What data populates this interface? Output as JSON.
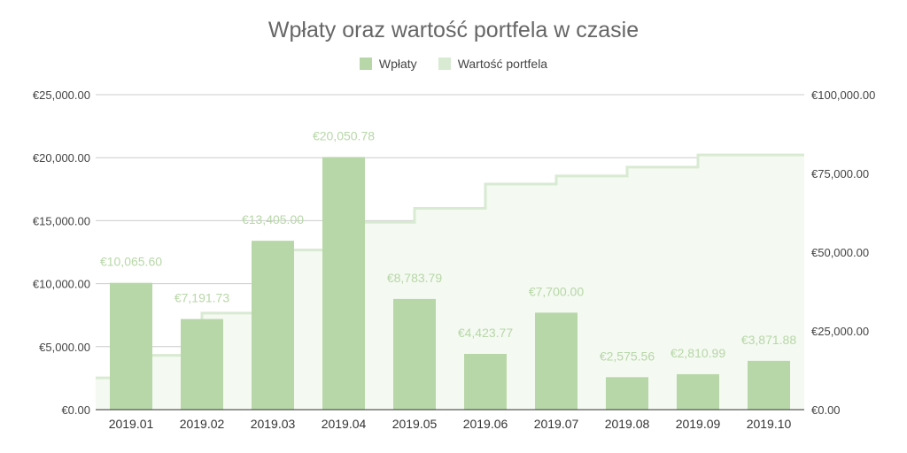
{
  "chart_data": {
    "type": "bar",
    "title": "Wpłaty oraz wartość portfela w czasie",
    "categories": [
      "2019.01",
      "2019.02",
      "2019.03",
      "2019.04",
      "2019.05",
      "2019.06",
      "2019.07",
      "2019.08",
      "2019.09",
      "2019.10"
    ],
    "series": [
      {
        "name": "Wpłaty",
        "type": "bar",
        "axis": "left",
        "color": "#b7d7a8",
        "values": [
          10065.6,
          7191.73,
          13405.0,
          20050.78,
          8783.79,
          4423.77,
          7700.0,
          2575.56,
          2810.99,
          3871.88
        ],
        "labels": [
          "€10,065.60",
          "€7,191.73",
          "€13,405.00",
          "€20,050.78",
          "€8,783.79",
          "€4,423.77",
          "€7,700.00",
          "€2,575.56",
          "€2,810.99",
          "€3,871.88"
        ]
      },
      {
        "name": "Wartość portfela",
        "type": "stepped-area",
        "axis": "right",
        "color": "#d9ead3",
        "values": [
          10065.6,
          17257.33,
          30662.33,
          50713.11,
          59496.9,
          63920.67,
          71620.67,
          74196.23,
          77007.22,
          80879.1
        ]
      }
    ],
    "y_left": {
      "ylim": [
        0,
        25000
      ],
      "ticks": [
        "€0.00",
        "€5,000.00",
        "€10,000.00",
        "€15,000.00",
        "€20,000.00",
        "€25,000.00"
      ]
    },
    "y_right": {
      "ylim": [
        0,
        100000
      ],
      "ticks": [
        "€0.00",
        "€25,000.00",
        "€50,000.00",
        "€75,000.00",
        "€100,000.00"
      ]
    },
    "grid": true,
    "legend_position": "top"
  }
}
